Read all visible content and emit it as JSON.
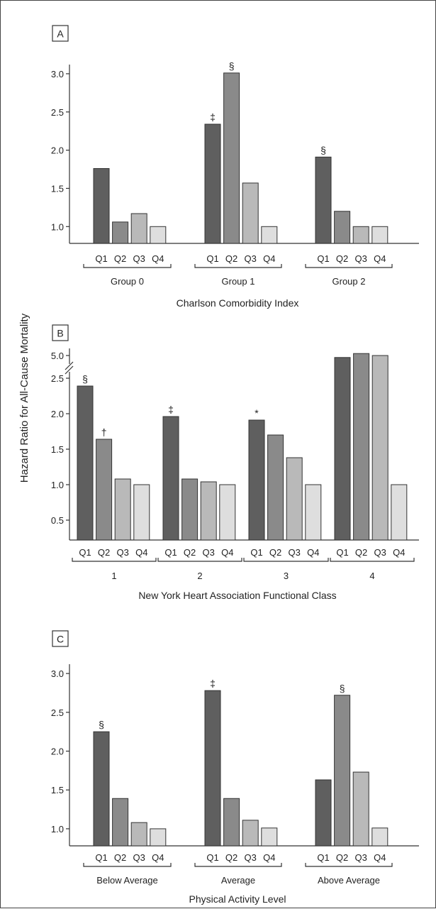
{
  "y_axis_label": "Hazard Ratio for All-Cause Mortality",
  "colors": {
    "Q1": "#5f5f5f",
    "Q2": "#8a8a8a",
    "Q3": "#b9b9b9",
    "Q4": "#dedede",
    "stroke": "#333333"
  },
  "chart_data": [
    {
      "type": "bar",
      "panel_label": "A",
      "title": "",
      "xlabel": "Charlson Comorbidity Index",
      "ylabel": "",
      "ylim": [
        0.78,
        3.12
      ],
      "yticks": [
        "1.0",
        "1.5",
        "2.0",
        "2.5",
        "3.0"
      ],
      "ytick_values": [
        1.0,
        1.5,
        2.0,
        2.5,
        3.0
      ],
      "series_labels": [
        "Q1",
        "Q2",
        "Q3",
        "Q4"
      ],
      "groups": [
        {
          "name": "Group 0",
          "values": [
            1.76,
            1.06,
            1.17,
            1.0
          ],
          "annotations": [
            "",
            "",
            "",
            ""
          ]
        },
        {
          "name": "Group 1",
          "values": [
            2.34,
            3.01,
            1.57,
            1.0
          ],
          "annotations": [
            "‡",
            "§",
            "",
            ""
          ]
        },
        {
          "name": "Group 2",
          "values": [
            1.91,
            1.2,
            1.0,
            1.0
          ],
          "annotations": [
            "§",
            "",
            "",
            ""
          ]
        }
      ],
      "grid": false,
      "legend": "none"
    },
    {
      "type": "bar",
      "panel_label": "B",
      "title": "",
      "xlabel": "New York Heart Association Functional Class",
      "ylabel": "Hazard Ratio for All-Cause Mortality",
      "ylim": [
        0.22,
        5.3
      ],
      "axis_break": "between 2.5 and 5.0",
      "yticks": [
        "0.5",
        "1.0",
        "1.5",
        "2.0",
        "2.5",
        "5.0"
      ],
      "ytick_values": [
        0.5,
        1.0,
        1.5,
        2.0,
        2.5,
        5.0
      ],
      "series_labels": [
        "Q1",
        "Q2",
        "Q3",
        "Q4"
      ],
      "groups": [
        {
          "name": "1",
          "values": [
            2.39,
            1.64,
            1.08,
            1.0
          ],
          "annotations": [
            "§",
            "†",
            "",
            ""
          ]
        },
        {
          "name": "2",
          "values": [
            1.96,
            1.08,
            1.04,
            1.0
          ],
          "annotations": [
            "‡",
            "",
            "",
            ""
          ]
        },
        {
          "name": "3",
          "values": [
            1.91,
            1.7,
            1.38,
            1.0
          ],
          "annotations": [
            "*",
            "",
            "",
            ""
          ]
        },
        {
          "name": "4",
          "values": [
            4.8,
            5.2,
            5.0,
            1.0
          ],
          "annotations": [
            "",
            "",
            "",
            ""
          ]
        }
      ],
      "grid": false,
      "legend": "none"
    },
    {
      "type": "bar",
      "panel_label": "C",
      "title": "",
      "xlabel": "Physical Activity Level",
      "ylabel": "",
      "ylim": [
        0.78,
        3.12
      ],
      "yticks": [
        "1.0",
        "1.5",
        "2.0",
        "2.5",
        "3.0"
      ],
      "ytick_values": [
        1.0,
        1.5,
        2.0,
        2.5,
        3.0
      ],
      "series_labels": [
        "Q1",
        "Q2",
        "Q3",
        "Q4"
      ],
      "groups": [
        {
          "name": "Below Average",
          "values": [
            2.25,
            1.39,
            1.08,
            1.0
          ],
          "annotations": [
            "§",
            "",
            "",
            ""
          ]
        },
        {
          "name": "Average",
          "values": [
            2.78,
            1.39,
            1.11,
            1.01
          ],
          "annotations": [
            "‡",
            "",
            "",
            ""
          ]
        },
        {
          "name": "Above Average",
          "values": [
            1.63,
            2.72,
            1.73,
            1.01
          ],
          "annotations": [
            "",
            "§",
            "",
            ""
          ]
        }
      ],
      "grid": false,
      "legend": "none"
    }
  ]
}
